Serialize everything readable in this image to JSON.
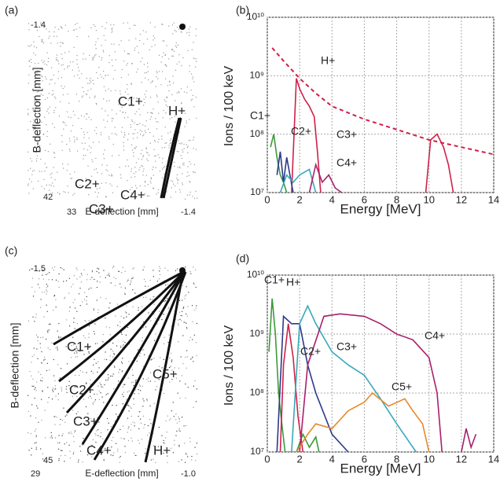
{
  "chart_data": [
    {
      "type": "image",
      "panel_label": "(a)",
      "xlabel": "E-deflection [mm]",
      "ylabel": "B-deflection [mm]",
      "xticks": [
        33,
        -1.4
      ],
      "yticks": [
        -1.4,
        42
      ],
      "annotations": [
        {
          "text": "C1+",
          "color": "#3c9a3c"
        },
        {
          "text": "H+",
          "color": "#d0204a"
        },
        {
          "text": "C2+",
          "color": "#2c3a8a"
        },
        {
          "text": "C4+",
          "color": "#a8206c"
        },
        {
          "text": "C3+",
          "color": "#38a8b8"
        }
      ]
    },
    {
      "type": "line",
      "panel_label": "(b)",
      "xlabel": "Energy [MeV]",
      "ylabel": "Ions / 100 keV",
      "log_y": true,
      "grid": true,
      "xlim": [
        0,
        14
      ],
      "xticks": [
        0,
        2,
        4,
        6,
        8,
        10,
        12,
        14
      ],
      "ylim": [
        10000000,
        10000000000
      ],
      "yticks": [
        {
          "value": 10000000,
          "label": "10⁷"
        },
        {
          "value": 100000000,
          "label": "10⁸"
        },
        {
          "value": 1000000000,
          "label": "10⁹"
        },
        {
          "value": 10000000000,
          "label": "10¹⁰"
        }
      ],
      "series": [
        {
          "color": "#d0204a",
          "dashed": true,
          "x": [
            0.3,
            1,
            2,
            3,
            4,
            6,
            8,
            10,
            12,
            14
          ],
          "values": [
            3000000000,
            1800000000,
            900000000,
            500000000,
            300000000,
            180000000,
            120000000,
            80000000,
            60000000,
            45000000
          ]
        },
        {
          "name": "H+",
          "color": "#d0204a",
          "x": [
            1.5,
            1.8,
            2.0,
            2.3,
            2.6,
            2.9,
            3.1,
            3.3,
            null,
            9.8,
            10.1,
            10.5,
            10.9,
            11.2,
            11.5
          ],
          "values": [
            10000000,
            900000000,
            600000000,
            400000000,
            300000000,
            200000000,
            50000000,
            10000000,
            null,
            10000000,
            80000000,
            100000000,
            60000000,
            30000000,
            10000000
          ]
        },
        {
          "name": "C1+",
          "color": "#3c9a3c",
          "x": [
            0.2,
            0.4,
            0.6,
            0.8,
            1.0,
            1.2
          ],
          "values": [
            60000000,
            100000000,
            40000000,
            20000000,
            15000000,
            10000000
          ]
        },
        {
          "name": "C2+",
          "color": "#2c3a8a",
          "x": [
            0.6,
            0.8,
            1.0,
            1.2,
            1.4,
            1.6
          ],
          "values": [
            20000000,
            50000000,
            15000000,
            40000000,
            20000000,
            10000000
          ]
        },
        {
          "name": "C3+",
          "color": "#38a8b8",
          "x": [
            0.8,
            1.2,
            1.6,
            2.0,
            2.6,
            3.0
          ],
          "values": [
            10000000,
            20000000,
            15000000,
            20000000,
            25000000,
            10000000
          ]
        },
        {
          "name": "C4+",
          "color": "#a8206c",
          "x": [
            2.6,
            3.0,
            3.4,
            3.8,
            4.2,
            4.6
          ],
          "values": [
            10000000,
            30000000,
            15000000,
            20000000,
            12000000,
            10000000
          ]
        }
      ]
    },
    {
      "type": "image",
      "panel_label": "(c)",
      "xlabel": "E-deflection [mm]",
      "ylabel": "B-deflection [mm]",
      "xticks": [
        29,
        {
          "value": -1,
          "label": "-1.0"
        }
      ],
      "yticks": [
        -1.5,
        45
      ],
      "annotations": [
        {
          "text": "C1+",
          "color": "#3c9a3c"
        },
        {
          "text": "C2+",
          "color": "#2c3a8a"
        },
        {
          "text": "C3+",
          "color": "#38a8b8"
        },
        {
          "text": "C4+",
          "color": "#a8206c"
        },
        {
          "text": "H+",
          "color": "#d0204a"
        },
        {
          "text": "C5+",
          "color": "#e8882a"
        }
      ]
    },
    {
      "type": "line",
      "panel_label": "(d)",
      "xlabel": "Energy [MeV]",
      "ylabel": "Ions / 100 keV",
      "log_y": true,
      "grid": true,
      "xlim": [
        0,
        14
      ],
      "xticks": [
        0,
        2,
        4,
        6,
        8,
        10,
        12,
        14
      ],
      "ylim": [
        10000000,
        10000000000
      ],
      "yticks": [
        {
          "value": 10000000,
          "label": "10⁷"
        },
        {
          "value": 100000000,
          "label": "10⁸"
        },
        {
          "value": 1000000000,
          "label": "10⁹"
        },
        {
          "value": 10000000000,
          "label": "10¹⁰"
        }
      ],
      "series": [
        {
          "name": "C1+",
          "color": "#3c9a3c",
          "x": [
            0.1,
            0.3,
            0.5,
            0.7,
            0.9,
            1.1,
            1.8,
            2.2,
            2.6,
            3.0,
            3.2
          ],
          "values": [
            500000000,
            4000000000,
            1000000000,
            100000000,
            30000000,
            10000000,
            10000000,
            20000000,
            12000000,
            18000000,
            10000000
          ]
        },
        {
          "name": "H+",
          "color": "#d0204a",
          "x": [
            0.8,
            1.0,
            1.3,
            1.6,
            1.9,
            2.2
          ],
          "values": [
            10000000,
            300000000,
            1500000000,
            400000000,
            40000000,
            10000000
          ]
        },
        {
          "name": "C2+",
          "color": "#2c3a8a",
          "x": [
            0.6,
            1.0,
            1.5,
            2.0,
            2.5,
            3.0,
            4.0,
            5.0
          ],
          "values": [
            10000000,
            2000000000,
            1500000000,
            1500000000,
            300000000,
            100000000,
            20000000,
            10000000
          ]
        },
        {
          "name": "C3+",
          "color": "#38a8b8",
          "x": [
            1.5,
            2.0,
            2.5,
            3.0,
            4.0,
            5.0,
            6.0,
            7.0,
            8.0,
            9.2
          ],
          "values": [
            10000000,
            1500000000,
            3000000000,
            1500000000,
            500000000,
            300000000,
            200000000,
            80000000,
            30000000,
            10000000
          ]
        },
        {
          "name": "C4+",
          "color": "#a8206c",
          "x": [
            2.0,
            2.5,
            3.5,
            4.5,
            6.0,
            7.0,
            8.0,
            9.0,
            10.0,
            10.5,
            10.8,
            null,
            12.0,
            12.3,
            12.6,
            12.9
          ],
          "values": [
            10000000,
            300000000,
            2000000000,
            2200000000,
            2000000000,
            1500000000,
            1000000000,
            800000000,
            400000000,
            100000000,
            10000000,
            null,
            10000000,
            25000000,
            12000000,
            20000000
          ]
        },
        {
          "name": "C5+",
          "color": "#e8882a",
          "x": [
            1.8,
            2.5,
            3.0,
            4.0,
            5.0,
            6.0,
            6.5,
            7.5,
            8.5,
            9.0,
            9.6,
            10.0
          ],
          "values": [
            10000000,
            20000000,
            30000000,
            25000000,
            50000000,
            70000000,
            100000000,
            60000000,
            80000000,
            50000000,
            30000000,
            10000000
          ]
        }
      ]
    }
  ]
}
